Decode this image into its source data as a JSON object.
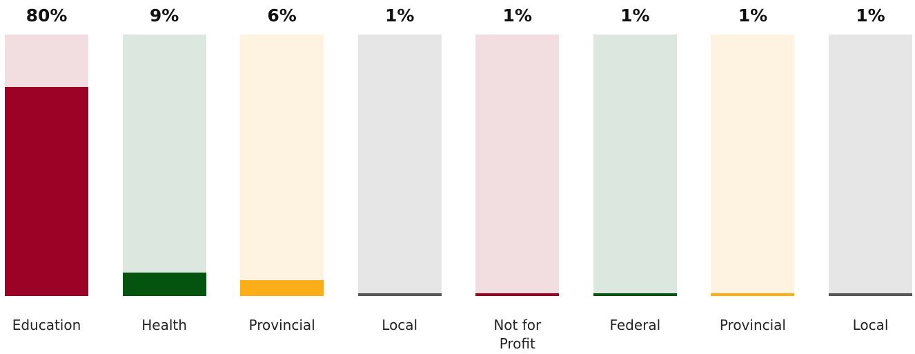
{
  "chart_data": {
    "type": "bar",
    "categories": [
      "Education",
      "Health",
      "Provincial",
      "Local",
      "Not for Profit",
      "Federal",
      "Provincial",
      "Local"
    ],
    "values": [
      80,
      9,
      6,
      1,
      1,
      1,
      1,
      1
    ],
    "value_labels": [
      "80%",
      "9%",
      "6%",
      "1%",
      "1%",
      "1%",
      "1%",
      "1%"
    ],
    "colors": [
      "#9b0226",
      "#04540f",
      "#fbae17",
      "#555555",
      "#9b0226",
      "#04540f",
      "#fbae17",
      "#555555"
    ],
    "track_colors": [
      "#f2dde0",
      "#dce8df",
      "#fef2e0",
      "#e6e6e6",
      "#f2dde0",
      "#dce8df",
      "#fef2e0",
      "#e6e6e6"
    ],
    "ylim": [
      0,
      100
    ]
  }
}
